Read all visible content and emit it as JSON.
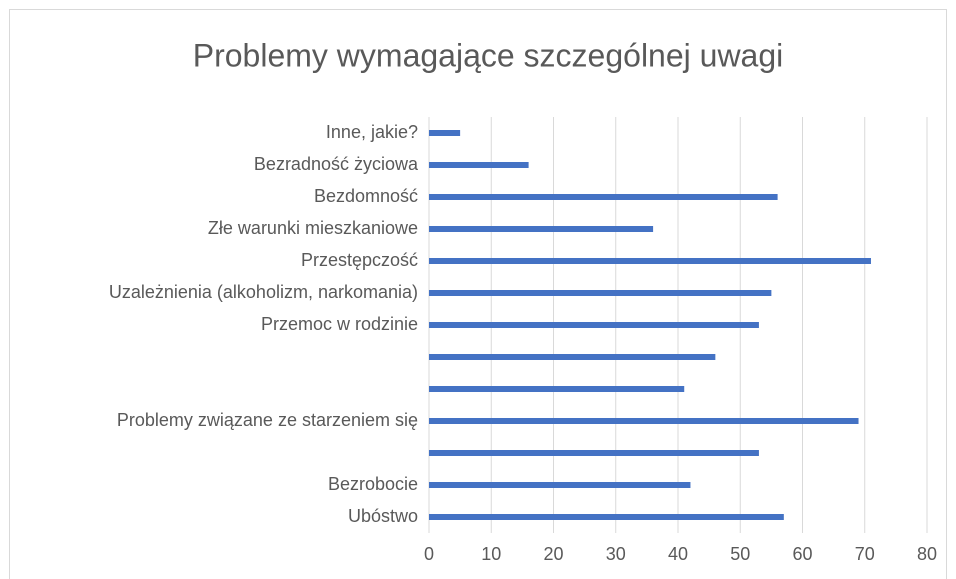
{
  "chart_data": {
    "type": "bar",
    "orientation": "horizontal",
    "title": "Problemy wymagające szczególnej uwagi",
    "categories": [
      "Ubóstwo",
      "Bezrobocie",
      null,
      "Problemy związane ze starzeniem się",
      null,
      null,
      "Przemoc w rodzinie",
      "Uzależnienia (alkoholizm, narkomania)",
      "Przestępczość",
      "Złe warunki mieszkaniowe",
      "Bezdomność",
      "Bezradność życiowa",
      "Inne, jakie?"
    ],
    "values": [
      57,
      42,
      53,
      69,
      41,
      46,
      53,
      55,
      71,
      36,
      56,
      16,
      5
    ],
    "color": "#4472c4",
    "xlim": [
      0,
      80
    ],
    "xticks": [
      0,
      10,
      20,
      30,
      40,
      50,
      60,
      70,
      80
    ],
    "grid": true
  }
}
